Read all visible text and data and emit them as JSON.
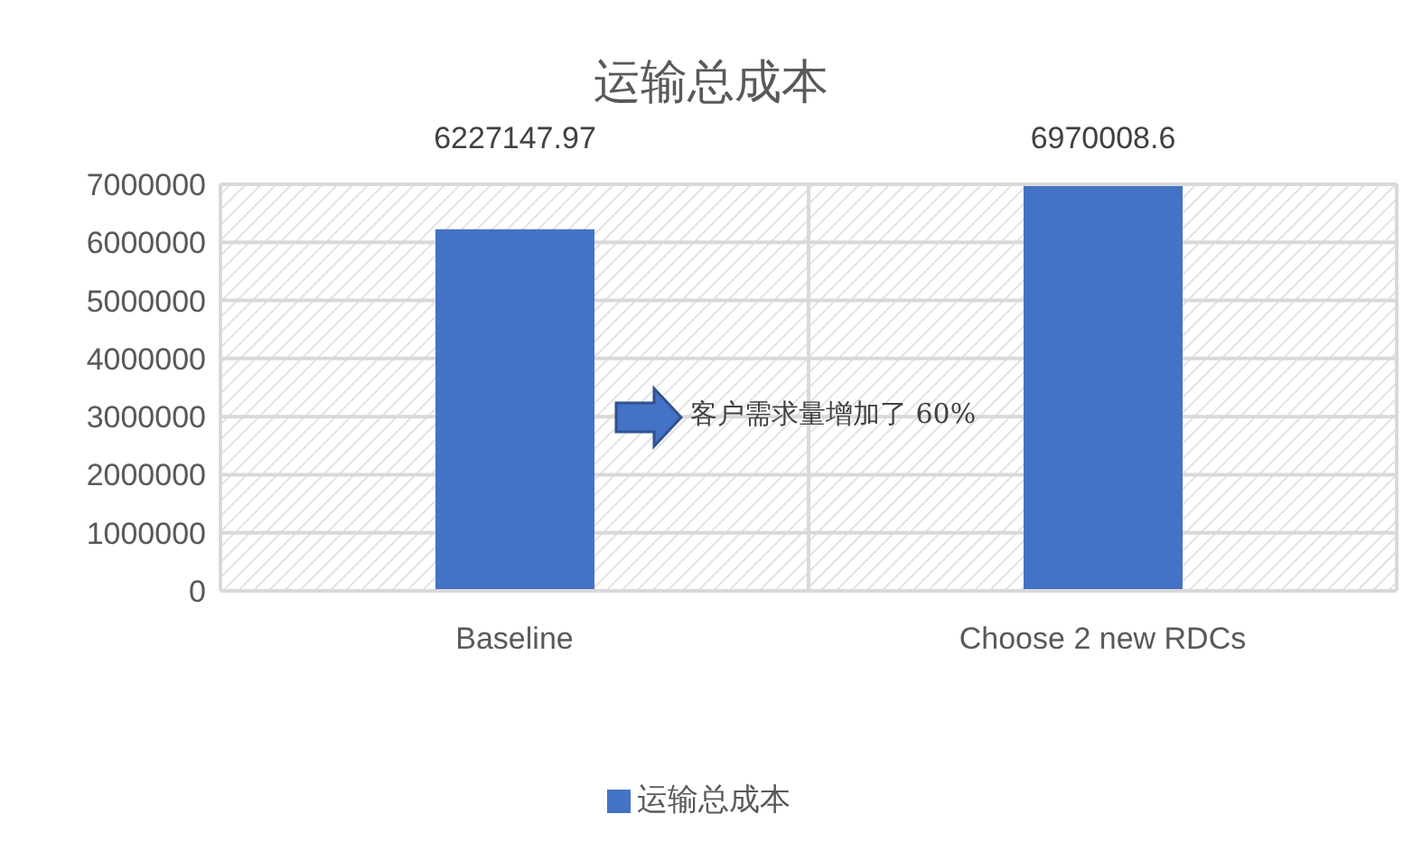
{
  "chart_data": {
    "type": "bar",
    "title": "运输总成本",
    "categories": [
      "Baseline",
      "Choose 2 new RDCs"
    ],
    "series": [
      {
        "name": "运输总成本",
        "color": "#4472c4",
        "values": [
          6227147.97,
          6970008.6
        ]
      }
    ],
    "ylim": [
      0,
      7000000
    ],
    "yticks": [
      0,
      1000000,
      2000000,
      3000000,
      4000000,
      5000000,
      6000000,
      7000000
    ],
    "grid": true,
    "legend": "bottom",
    "data_labels": true,
    "annotations": [
      "客户需求量增加了 60%"
    ]
  }
}
